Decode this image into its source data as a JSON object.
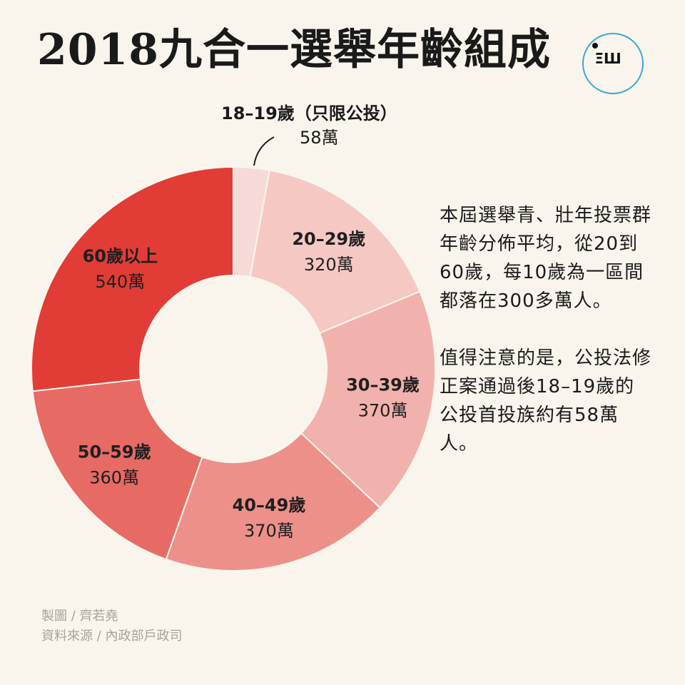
{
  "title": "2018九合一選舉年齡組成",
  "logo": {
    "mark": "ΞШ",
    "icon": "media-logo-icon",
    "ring_color": "#3aa6d8"
  },
  "chart_data": {
    "type": "pie",
    "donut": true,
    "title": "2018九合一選舉年齡組成",
    "unit": "萬",
    "start": "12 o'clock, clockwise",
    "slices": [
      {
        "category": "18–19歲（只限公投）",
        "label": "58萬",
        "value": 58,
        "color": "#f7d9d7"
      },
      {
        "category": "20–29歲",
        "label": "320萬",
        "value": 320,
        "color": "#f5c8c4"
      },
      {
        "category": "30–39歲",
        "label": "370萬",
        "value": 370,
        "color": "#f1b1ad"
      },
      {
        "category": "40–49歲",
        "label": "370萬",
        "value": 370,
        "color": "#ed908a"
      },
      {
        "category": "50–59歲",
        "label": "360萬",
        "value": 360,
        "color": "#e76a64"
      },
      {
        "category": "60歲以上",
        "label": "540萬",
        "value": 540,
        "color": "#e23c36"
      }
    ]
  },
  "notes": {
    "p1": "本屆選舉青、壯年投票群年齡分佈平均，從20到60歲，每10歲為一區間都落在300多萬人。",
    "p2": "值得注意的是，公投法修正案通過後18–19歲的公投首投族約有58萬人。"
  },
  "credits": {
    "author": "製圖 / 齊若堯",
    "source": "資料來源 / 內政部戶政司"
  }
}
